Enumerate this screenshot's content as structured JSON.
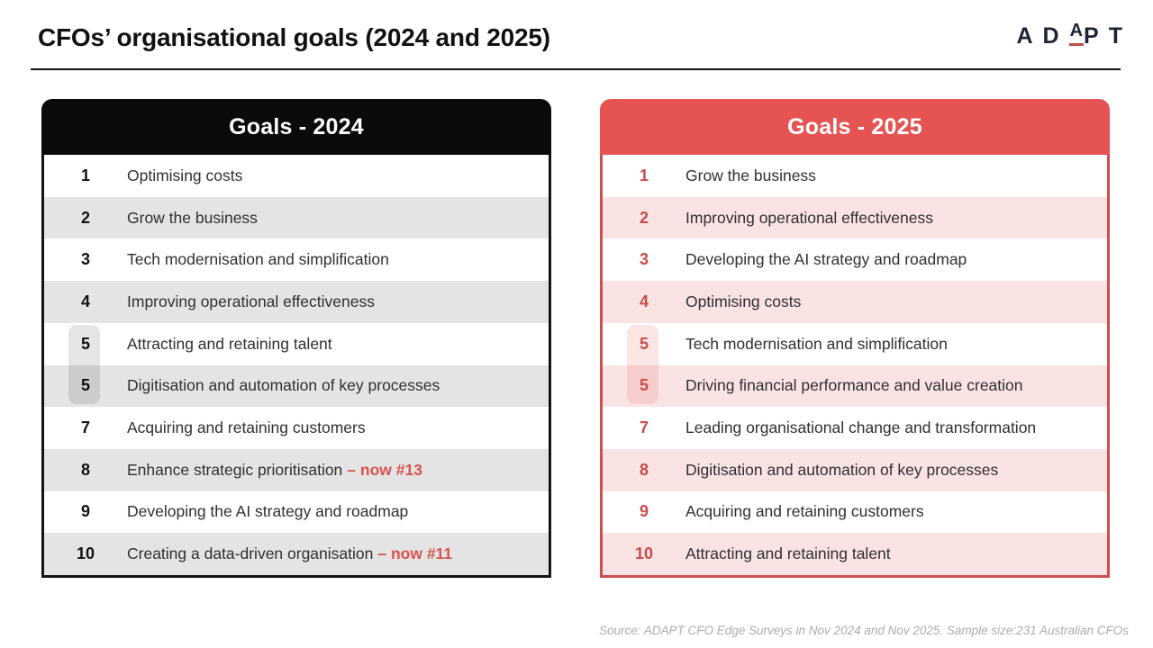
{
  "header": {
    "title": "CFOs’ organisational goals (2024 and 2025)"
  },
  "logo": {
    "left": "AD",
    "mid": "A",
    "right": "PT"
  },
  "colors": {
    "accent_red": "#E55353",
    "header_black": "#0B0B0B",
    "row_gray": "#E4E4E4",
    "row_pink": "#FAE3E3",
    "rank_red": "#C94A4A",
    "note_red": "#D9534F",
    "border_red": "#CE4F4D",
    "logo_navy": "#1D2433",
    "logo_underline_red": "#BF4B49"
  },
  "tables": [
    {
      "title": "Goals - 2024",
      "theme": "black",
      "rows": [
        {
          "rank": "1",
          "goal": "Optimising costs"
        },
        {
          "rank": "2",
          "goal": "Grow the business"
        },
        {
          "rank": "3",
          "goal": "Tech modernisation and simplification"
        },
        {
          "rank": "4",
          "goal": "Improving operational effectiveness"
        },
        {
          "rank": "5",
          "goal": "Attracting and retaining talent",
          "tied": true
        },
        {
          "rank": "5",
          "goal": "Digitisation and automation of key processes",
          "tied": true
        },
        {
          "rank": "7",
          "goal": "Acquiring and retaining customers"
        },
        {
          "rank": "8",
          "goal": "Enhance strategic prioritisation",
          "note": "– now #13"
        },
        {
          "rank": "9",
          "goal": "Developing the AI strategy and roadmap"
        },
        {
          "rank": "10",
          "goal": "Creating a data-driven organisation",
          "note": "– now #11"
        }
      ]
    },
    {
      "title": "Goals - 2025",
      "theme": "red",
      "rows": [
        {
          "rank": "1",
          "goal": "Grow the business"
        },
        {
          "rank": "2",
          "goal": "Improving operational effectiveness"
        },
        {
          "rank": "3",
          "goal": "Developing the AI strategy and roadmap"
        },
        {
          "rank": "4",
          "goal": "Optimising costs"
        },
        {
          "rank": "5",
          "goal": "Tech modernisation and simplification",
          "tied": true
        },
        {
          "rank": "5",
          "goal": "Driving financial performance and value creation",
          "tied": true
        },
        {
          "rank": "7",
          "goal": "Leading organisational change and transformation"
        },
        {
          "rank": "8",
          "goal": "Digitisation and automation of key processes"
        },
        {
          "rank": "9",
          "goal": "Acquiring and retaining customers"
        },
        {
          "rank": "10",
          "goal": "Attracting and retaining talent"
        }
      ]
    }
  ],
  "footer": {
    "source": "Source: ADAPT CFO Edge Surveys in Nov 2024 and Nov 2025. Sample size:231 Australian CFOs"
  }
}
